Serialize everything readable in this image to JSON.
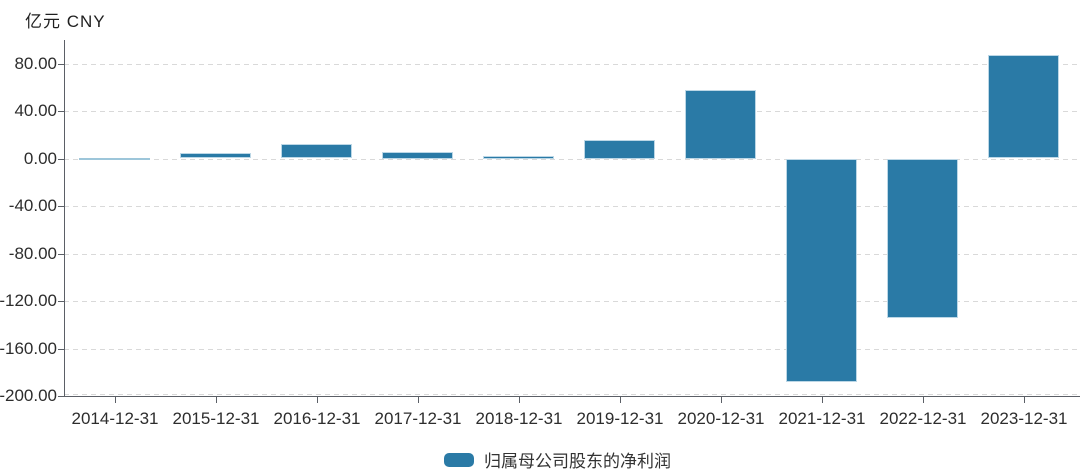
{
  "unit_label": "亿元 CNY",
  "legend": {
    "label": "归属母公司股东的净利润"
  },
  "colors": {
    "bar": "#2a7aa6",
    "bar_border": "#bcd7e6",
    "tiny_bar": "#9dc6da",
    "axis": "#5b5f66",
    "grid": "#d9d9d9",
    "text": "#2d2d2d"
  },
  "chart_data": {
    "type": "bar",
    "title": "亿元 CNY",
    "xlabel": "",
    "ylabel": "亿元 CNY",
    "categories": [
      "2014-12-31",
      "2015-12-31",
      "2016-12-31",
      "2017-12-31",
      "2018-12-31",
      "2019-12-31",
      "2020-12-31",
      "2021-12-31",
      "2022-12-31",
      "2023-12-31"
    ],
    "series": [
      {
        "name": "归属母公司股东的净利润",
        "values": [
          0.3,
          4.5,
          12,
          6,
          2.5,
          16,
          58,
          -188,
          -134,
          87
        ]
      }
    ],
    "ylim": [
      -200,
      100
    ],
    "y_interval": 40,
    "y_tick_labels": [
      "80.00",
      "40.00",
      "0.00",
      "-40.00",
      "-80.00",
      "-120.00",
      "-160.00",
      "-200.00"
    ],
    "y_tick_values": [
      80,
      40,
      0,
      -40,
      -80,
      -120,
      -160,
      -200
    ],
    "grid": "dashed-horizontal",
    "legend_position": "bottom-center",
    "bar_color": "#2a7aa6"
  }
}
